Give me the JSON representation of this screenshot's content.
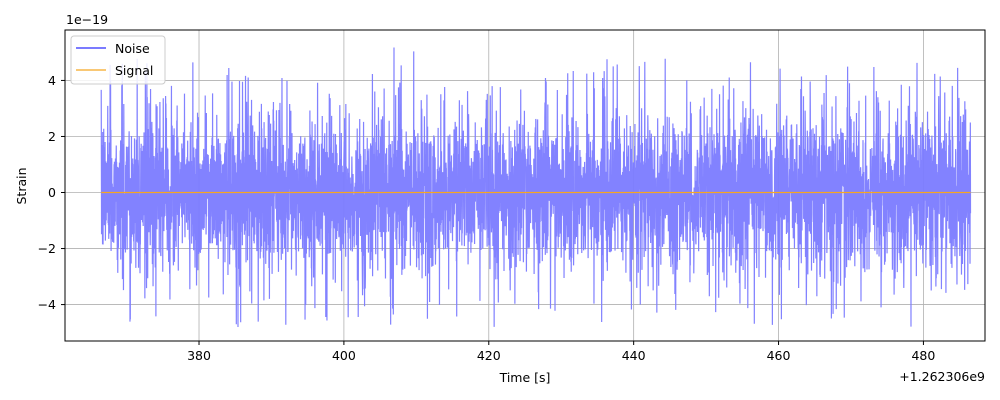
{
  "chart_data": {
    "type": "line",
    "xlabel": "Time [s]",
    "ylabel": "Strain",
    "x_offset_label": "+1.262306e9",
    "y_scale_label": "1e−19",
    "xlim": [
      361.5,
      488.5
    ],
    "ylim": [
      -5.3,
      5.8
    ],
    "x_ticks": [
      {
        "value": 380,
        "label": "380"
      },
      {
        "value": 400,
        "label": "400"
      },
      {
        "value": 420,
        "label": "420"
      },
      {
        "value": 440,
        "label": "440"
      },
      {
        "value": 460,
        "label": "460"
      },
      {
        "value": 480,
        "label": "480"
      }
    ],
    "y_ticks": [
      {
        "value": -4,
        "label": "−4"
      },
      {
        "value": -2,
        "label": "−2"
      },
      {
        "value": 0,
        "label": "0"
      },
      {
        "value": 2,
        "label": "2"
      },
      {
        "value": 4,
        "label": "4"
      }
    ],
    "grid": true,
    "legend_position": "top-left",
    "series": [
      {
        "name": "Noise",
        "color": "#7b7bff",
        "x_range": [
          366.5,
          486.5
        ],
        "typical_amplitude": 2.4,
        "peak_positive": 5.4,
        "peak_negative": -4.8
      },
      {
        "name": "Signal",
        "color": "#f5a623",
        "x_range": [
          366.5,
          486.5
        ],
        "values": [
          0,
          0
        ]
      }
    ]
  }
}
